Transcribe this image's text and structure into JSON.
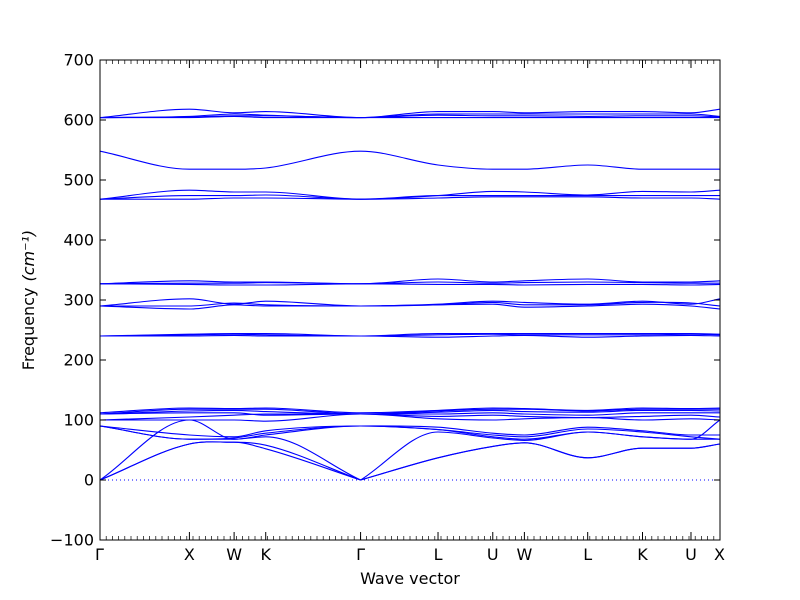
{
  "chart_data": {
    "type": "line",
    "xlabel": "Wave vector",
    "ylabel": "Frequency",
    "ylabel_unit": "(cm⁻¹)",
    "ylim": [
      -100,
      700
    ],
    "y_ticks": [
      -100,
      0,
      100,
      200,
      300,
      400,
      500,
      600,
      700
    ],
    "k_path": [
      "Γ",
      "X",
      "W",
      "K",
      "Γ",
      "L",
      "U",
      "W",
      "L",
      "K",
      "U",
      "X"
    ],
    "k_positions": [
      0,
      0.1442,
      0.2163,
      0.2673,
      0.4203,
      0.5452,
      0.6335,
      0.6845,
      0.7866,
      0.875,
      0.9532,
      1.0
    ],
    "line_color": "#0000ff",
    "zero_line": "dotted",
    "series": [
      {
        "values": [
          0,
          60,
          63,
          52,
          0,
          37,
          56,
          62,
          37,
          53,
          53,
          60
        ]
      },
      {
        "values": [
          0,
          60,
          63,
          58,
          0,
          37,
          56,
          62,
          37,
          53,
          53,
          60
        ]
      },
      {
        "values": [
          0,
          100,
          68,
          72,
          0,
          80,
          70,
          66,
          80,
          72,
          68,
          100
        ]
      },
      {
        "values": [
          90,
          68,
          68,
          75,
          90,
          84,
          72,
          68,
          80,
          72,
          68,
          68
        ]
      },
      {
        "values": [
          90,
          68,
          70,
          78,
          90,
          84,
          75,
          72,
          85,
          80,
          72,
          68
        ]
      },
      {
        "values": [
          90,
          75,
          72,
          82,
          90,
          88,
          78,
          75,
          88,
          82,
          75,
          75
        ]
      },
      {
        "values": [
          100,
          100,
          100,
          98,
          110,
          102,
          100,
          102,
          104,
          100,
          102,
          100
        ]
      },
      {
        "values": [
          100,
          105,
          108,
          110,
          110,
          106,
          108,
          106,
          104,
          106,
          108,
          105
        ]
      },
      {
        "values": [
          110,
          112,
          112,
          108,
          110,
          110,
          112,
          110,
          108,
          112,
          112,
          112
        ]
      },
      {
        "values": [
          110,
          115,
          116,
          114,
          110,
          113,
          116,
          114,
          113,
          116,
          116,
          115
        ]
      },
      {
        "values": [
          110,
          118,
          118,
          118,
          110,
          115,
          118,
          118,
          115,
          118,
          118,
          118
        ]
      },
      {
        "values": [
          112,
          120,
          119,
          120,
          112,
          116,
          120,
          119,
          116,
          120,
          119,
          120
        ]
      },
      {
        "values": [
          240,
          240,
          241,
          240,
          240,
          238,
          240,
          241,
          238,
          240,
          241,
          240
        ]
      },
      {
        "values": [
          240,
          242,
          243,
          242,
          240,
          242,
          243,
          242,
          242,
          242,
          243,
          242
        ]
      },
      {
        "values": [
          240,
          243,
          244,
          244,
          240,
          244,
          244,
          244,
          244,
          244,
          244,
          243
        ]
      },
      {
        "values": [
          290,
          285,
          292,
          290,
          290,
          292,
          293,
          288,
          290,
          293,
          290,
          285
        ]
      },
      {
        "values": [
          290,
          290,
          295,
          292,
          290,
          292,
          296,
          292,
          292,
          296,
          295,
          290
        ]
      },
      {
        "values": [
          290,
          302,
          293,
          298,
          290,
          293,
          298,
          296,
          293,
          298,
          293,
          302
        ]
      },
      {
        "values": [
          327,
          326,
          325,
          325,
          327,
          326,
          326,
          325,
          326,
          326,
          325,
          326
        ]
      },
      {
        "values": [
          327,
          328,
          328,
          329,
          327,
          330,
          328,
          329,
          330,
          329,
          328,
          328
        ]
      },
      {
        "values": [
          327,
          332,
          330,
          330,
          327,
          335,
          330,
          332,
          335,
          330,
          330,
          332
        ]
      },
      {
        "values": [
          468,
          468,
          470,
          470,
          468,
          470,
          472,
          472,
          472,
          470,
          470,
          468
        ]
      },
      {
        "values": [
          468,
          474,
          474,
          475,
          468,
          474,
          474,
          474,
          474,
          474,
          474,
          474
        ]
      },
      {
        "values": [
          468,
          483,
          480,
          480,
          468,
          474,
          481,
          480,
          475,
          481,
          480,
          483
        ]
      },
      {
        "values": [
          548,
          518,
          518,
          520,
          548,
          525,
          518,
          518,
          525,
          518,
          518,
          518
        ]
      },
      {
        "values": [
          604,
          604,
          606,
          604,
          604,
          604,
          604,
          604,
          604,
          604,
          604,
          604
        ]
      },
      {
        "values": [
          604,
          605,
          607,
          607,
          604,
          608,
          607,
          607,
          606,
          607,
          607,
          605
        ]
      },
      {
        "values": [
          604,
          606,
          610,
          608,
          604,
          610,
          610,
          610,
          610,
          610,
          610,
          606
        ]
      },
      {
        "values": [
          604,
          618,
          612,
          614,
          604,
          614,
          614,
          612,
          614,
          614,
          612,
          618
        ]
      }
    ]
  }
}
